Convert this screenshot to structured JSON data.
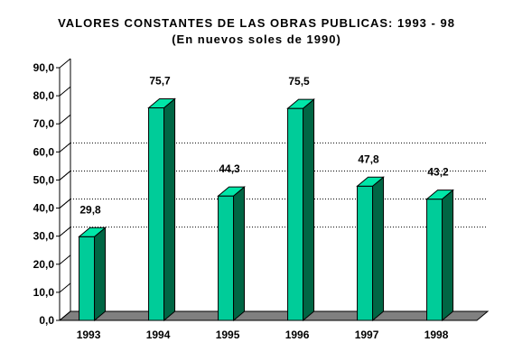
{
  "chart_data": {
    "type": "bar",
    "title": "VALORES CONSTANTES DE LAS OBRAS PUBLICAS: 1993 - 98",
    "subtitle": "(En nuevos soles de 1990)",
    "categories": [
      "1993",
      "1994",
      "1995",
      "1996",
      "1997",
      "1998"
    ],
    "values": [
      29.8,
      75.7,
      44.3,
      75.5,
      47.8,
      43.2
    ],
    "data_labels": [
      "29,8",
      "75,7",
      "44,3",
      "75,5",
      "47,8",
      "43,2"
    ],
    "yticks": [
      "0,0",
      "10,0",
      "20,0",
      "30,0",
      "40,0",
      "50,0",
      "60,0",
      "70,0",
      "80,0",
      "90,0"
    ],
    "ylim": [
      0,
      90
    ],
    "xlabel": "",
    "ylabel": "",
    "grid": "dotted-horizontal",
    "legend": "none",
    "style": "3d-column"
  },
  "colors": {
    "bar_front": "#00cc99",
    "bar_side": "#006644",
    "bar_top": "#00e6a8",
    "floor": "#808080",
    "grid": "#000000"
  }
}
